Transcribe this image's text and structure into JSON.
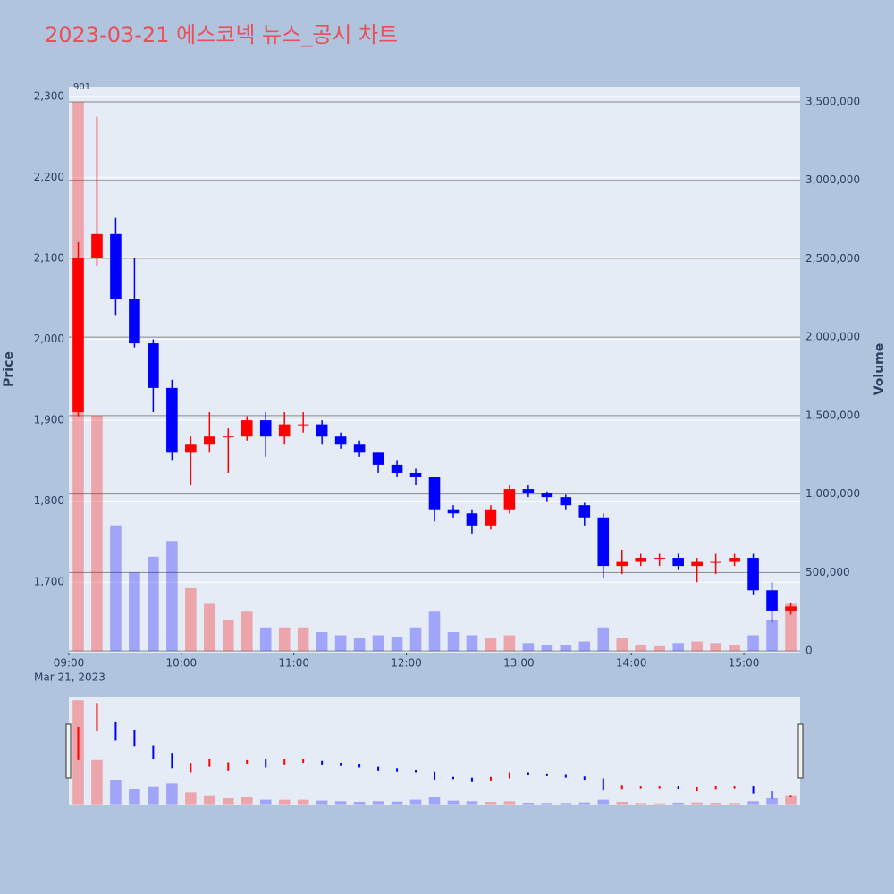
{
  "chart_data": {
    "type": "candlestick",
    "title": "2023-03-21 에스코넥 뉴스_공시 차트",
    "y_label": "Price",
    "y2_label": "Volume",
    "x_date_label": "Mar 21, 2023",
    "annotation": "901",
    "increasing_color": "#ff0000",
    "decreasing_color": "#0000ff",
    "x": [
      "09:00",
      "09:10",
      "09:20",
      "09:30",
      "09:40",
      "09:50",
      "10:00",
      "10:10",
      "10:20",
      "10:30",
      "10:40",
      "10:50",
      "11:00",
      "11:10",
      "11:20",
      "11:30",
      "11:40",
      "11:50",
      "12:00",
      "12:10",
      "12:20",
      "12:30",
      "12:40",
      "12:50",
      "13:00",
      "13:10",
      "13:20",
      "13:30",
      "13:40",
      "13:50",
      "14:00",
      "14:10",
      "14:20",
      "14:30",
      "14:40",
      "14:50",
      "15:00",
      "15:10",
      "15:20"
    ],
    "open": [
      1910,
      2100,
      2130,
      2050,
      1995,
      1940,
      1860,
      1870,
      1880,
      1880,
      1900,
      1880,
      1895,
      1895,
      1880,
      1870,
      1860,
      1845,
      1835,
      1830,
      1790,
      1785,
      1770,
      1790,
      1815,
      1810,
      1805,
      1795,
      1780,
      1720,
      1725,
      1730,
      1730,
      1720,
      1725,
      1725,
      1730,
      1690,
      1665
    ],
    "high": [
      2120,
      2275,
      2150,
      2100,
      2000,
      1950,
      1880,
      1910,
      1890,
      1905,
      1910,
      1910,
      1910,
      1900,
      1885,
      1875,
      1860,
      1850,
      1840,
      1830,
      1795,
      1790,
      1795,
      1820,
      1820,
      1812,
      1808,
      1798,
      1785,
      1740,
      1735,
      1735,
      1735,
      1730,
      1735,
      1735,
      1735,
      1700,
      1675
    ],
    "low": [
      1905,
      2090,
      2030,
      1990,
      1910,
      1850,
      1820,
      1860,
      1835,
      1875,
      1855,
      1870,
      1885,
      1870,
      1865,
      1855,
      1835,
      1830,
      1820,
      1775,
      1780,
      1760,
      1765,
      1785,
      1805,
      1800,
      1790,
      1770,
      1705,
      1710,
      1720,
      1720,
      1715,
      1700,
      1710,
      1720,
      1685,
      1650,
      1660
    ],
    "close": [
      2100,
      2130,
      2050,
      1995,
      1940,
      1860,
      1870,
      1880,
      1880,
      1900,
      1880,
      1895,
      1895,
      1880,
      1870,
      1860,
      1845,
      1835,
      1830,
      1790,
      1785,
      1770,
      1790,
      1815,
      1810,
      1805,
      1795,
      1780,
      1720,
      1725,
      1730,
      1730,
      1720,
      1725,
      1725,
      1730,
      1690,
      1665,
      1670
    ],
    "volume": [
      3500000,
      1500000,
      800000,
      500000,
      600000,
      700000,
      400000,
      300000,
      200000,
      250000,
      150000,
      150000,
      150000,
      120000,
      100000,
      80000,
      100000,
      90000,
      150000,
      250000,
      120000,
      100000,
      80000,
      100000,
      50000,
      40000,
      40000,
      60000,
      150000,
      80000,
      40000,
      30000,
      50000,
      60000,
      50000,
      40000,
      100000,
      200000,
      300000
    ],
    "xlim": [
      "09:00",
      "15:30"
    ],
    "xticks": [
      "09:00",
      "10:00",
      "11:00",
      "12:00",
      "13:00",
      "14:00",
      "15:00"
    ],
    "ylim": [
      1613,
      2312
    ],
    "yticks": [
      {
        "value": 1700,
        "label": "1,700"
      },
      {
        "value": 1800,
        "label": "1,800"
      },
      {
        "value": 1900,
        "label": "1,900"
      },
      {
        "value": 2000,
        "label": "2,000"
      },
      {
        "value": 2100,
        "label": "2,100"
      },
      {
        "value": 2200,
        "label": "2,200"
      },
      {
        "value": 2300,
        "label": "2,300"
      }
    ],
    "y2lim": [
      -11000,
      3597000
    ],
    "y2ticks": [
      0,
      {
        "value": 500000,
        "label": "500,000"
      },
      {
        "value": 1000000,
        "label": "1,000,000"
      },
      {
        "value": 1500000,
        "label": "1,500,000"
      },
      {
        "value": 2000000,
        "label": "2,000,000"
      },
      {
        "value": 2500000,
        "label": "2,500,000"
      },
      {
        "value": 3000000,
        "label": "3,000,000"
      },
      {
        "value": 3500000,
        "label": "3,500,000"
      }
    ]
  }
}
